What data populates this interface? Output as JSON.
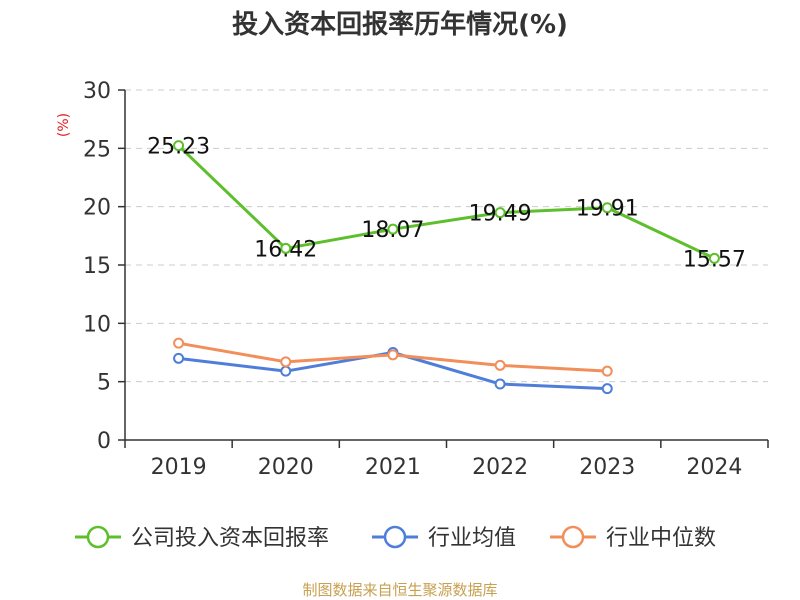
{
  "chart_data": {
    "type": "line",
    "title": "投入资本回报率历年情况(%)",
    "ylabel": "(%)",
    "categories": [
      "2019",
      "2020",
      "2021",
      "2022",
      "2023",
      "2024"
    ],
    "ylim": [
      0,
      30
    ],
    "yticks": [
      0,
      5,
      10,
      15,
      20,
      25,
      30
    ],
    "grid": true,
    "legend_position": "bottom",
    "series": [
      {
        "name": "公司投入资本回报率",
        "color": "#5cbf2b",
        "values": [
          25.23,
          16.42,
          18.07,
          19.49,
          19.91,
          15.57
        ],
        "show_labels": true
      },
      {
        "name": "行业均值",
        "color": "#4e7ed9",
        "values": [
          7.0,
          5.9,
          7.5,
          4.8,
          4.4,
          null
        ],
        "show_labels": false
      },
      {
        "name": "行业中位数",
        "color": "#f28e5a",
        "values": [
          8.3,
          6.7,
          7.3,
          6.4,
          5.9,
          null
        ],
        "show_labels": false
      }
    ]
  },
  "source": {
    "text": "制图数据来自恒生聚源数据库",
    "color": "#c8a050"
  },
  "colors": {
    "ylabel": "#e02020",
    "axis": "#333333",
    "grid": "#cccccc"
  }
}
